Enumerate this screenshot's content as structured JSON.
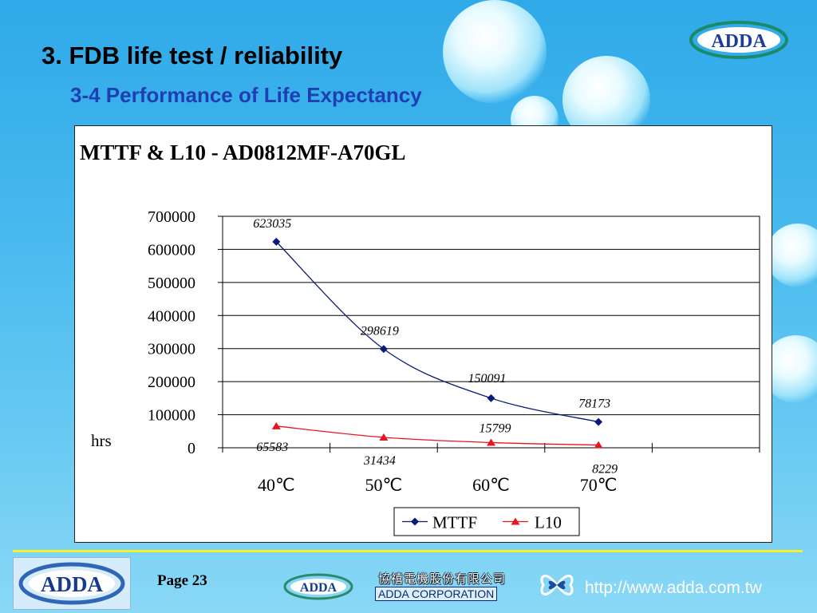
{
  "header": {
    "title": "3. FDB life test / reliability",
    "subtitle": "3-4 Performance of Life Expectancy"
  },
  "logos": {
    "top_right": "ADDA",
    "bottom_left": "ADDA",
    "bottom_middle": "ADDA"
  },
  "footer": {
    "page": "Page 23",
    "company_cn": "協禧電機股份有限公司",
    "company_en": "ADDA CORPORATION",
    "website": "http://www.adda.com.tw"
  },
  "colors": {
    "mttf": "#0a1a7a",
    "l10": "#e8141e",
    "title_blue": "#1e3fb4",
    "accent_yellow": "#f2f230"
  },
  "chart_data": {
    "type": "line",
    "title": "MTTF & L10 - AD0812MF-A70GL",
    "ylabel": "hrs",
    "categories": [
      "40℃",
      "50℃",
      "60℃",
      "70℃"
    ],
    "ylim": [
      0,
      700000
    ],
    "yticks": [
      "700000",
      "600000",
      "500000",
      "400000",
      "300000",
      "200000",
      "100000",
      "0"
    ],
    "grid": true,
    "legend": "bottom",
    "series": [
      {
        "name": "MTTF",
        "values": [
          623035,
          298619,
          150091,
          78173
        ],
        "labels": [
          "623035",
          "298619",
          "150091",
          "78173"
        ]
      },
      {
        "name": "L10",
        "values": [
          65583,
          31434,
          15799,
          8229
        ],
        "labels": [
          "65583",
          "31434",
          "15799",
          "8229"
        ]
      }
    ]
  }
}
